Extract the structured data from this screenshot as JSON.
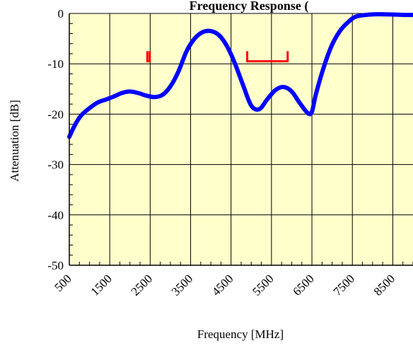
{
  "chart_data": {
    "type": "line",
    "title": "Frequency Response (",
    "xlabel": "Frequency [MHz]",
    "ylabel": "Attenuation [dB]",
    "xlim": [
      500,
      9000
    ],
    "ylim": [
      -50,
      0
    ],
    "grid": true,
    "plot_background": "#FFFFCC",
    "x_ticks": [
      500,
      1500,
      2500,
      3500,
      4500,
      5500,
      6500,
      7500,
      8500
    ],
    "x_tick_labels": [
      "500",
      "1500",
      "2500",
      "3500",
      "4500",
      "5500",
      "6500",
      "7500",
      "8500"
    ],
    "y_ticks": [
      0,
      -10,
      -20,
      -30,
      -40,
      -50
    ],
    "y_tick_labels": [
      "0",
      "-10",
      "-20",
      "-30",
      "-40",
      "-50"
    ],
    "series": [
      {
        "color": "#0000FF",
        "x": [
          500,
          650,
          800,
          1000,
          1200,
          1400,
          1600,
          1800,
          2000,
          2200,
          2400,
          2600,
          2800,
          3000,
          3200,
          3400,
          3600,
          3800,
          4000,
          4200,
          4400,
          4600,
          4800,
          5000,
          5200,
          5400,
          5600,
          5800,
          6000,
          6200,
          6400,
          6500,
          6600,
          6800,
          7000,
          7200,
          7400,
          7600,
          8000,
          8400,
          8800,
          9000
        ],
        "y": [
          -24.5,
          -22,
          -20.2,
          -18.8,
          -17.7,
          -17.1,
          -16.5,
          -15.8,
          -15.5,
          -15.8,
          -16.3,
          -16.6,
          -16.2,
          -14.5,
          -11.5,
          -7.5,
          -5,
          -3.7,
          -3.5,
          -4.3,
          -6.5,
          -10,
          -14.3,
          -18.3,
          -19,
          -17,
          -15.2,
          -14.6,
          -15.5,
          -17.8,
          -19.8,
          -19.5,
          -16,
          -10.5,
          -6.2,
          -3.4,
          -1.7,
          -0.6,
          -0.2,
          -0.2,
          -0.3,
          -0.3
        ]
      }
    ],
    "annotations": [
      {
        "type": "bracket",
        "color": "#FF0000",
        "x_start": 2430,
        "x_end": 2490,
        "y": -9.5,
        "y_top": -7.5
      },
      {
        "type": "bracket",
        "color": "#FF0000",
        "x_start": 4900,
        "x_end": 5900,
        "y": -9.5,
        "y_top": -7.5
      }
    ]
  }
}
